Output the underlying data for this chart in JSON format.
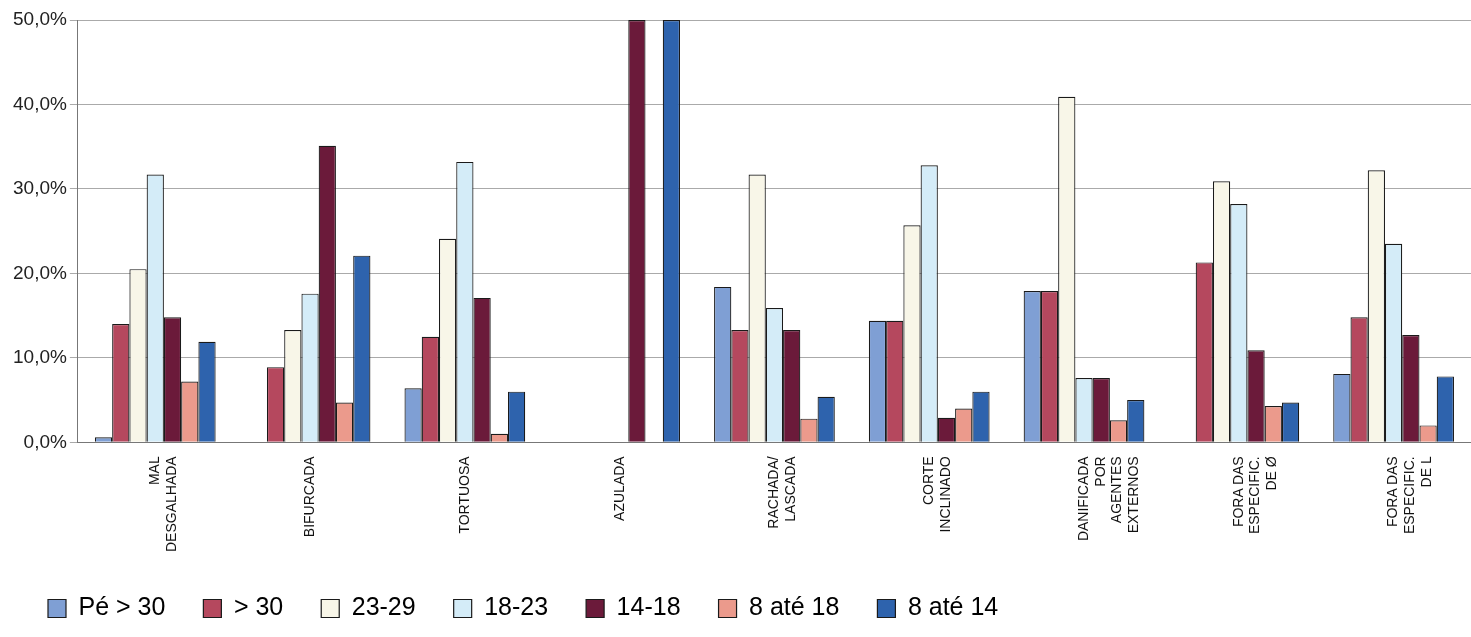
{
  "chart_data": {
    "type": "bar",
    "categories": [
      "MAL\nDESGALHADA",
      "BIFURCADA",
      "TORTUOSA",
      "AZULADA",
      "RACHADA/\nLASCADA",
      "CORTE\nINCLINADO",
      "DANIFICADA\nPOR\nAGENTES\nEXTERNOS",
      "FORA DAS\nESPECIFIC.\nDE Ø",
      "FORA DAS\nESPECIFIC.\nDE L"
    ],
    "series": [
      {
        "name": "Pé > 30",
        "color": "#7f9fd4",
        "values": [
          0.6,
          0,
          6.4,
          0,
          18.4,
          14.4,
          17.9,
          0,
          8.1
        ]
      },
      {
        "name": "> 30",
        "color": "#b5485e",
        "values": [
          14.0,
          8.9,
          12.5,
          0,
          13.3,
          14.4,
          17.9,
          21.3,
          14.8
        ]
      },
      {
        "name": "23-29",
        "color": "#f8f6e8",
        "values": [
          20.5,
          13.3,
          24.1,
          0,
          31.7,
          25.7,
          40.9,
          30.9,
          32.2
        ]
      },
      {
        "name": "18-23",
        "color": "#d4ecf8",
        "values": [
          31.7,
          17.6,
          33.2,
          0,
          15.9,
          32.8,
          7.6,
          28.2,
          23.5
        ]
      },
      {
        "name": "14-18",
        "color": "#6b1a3a",
        "values": [
          14.8,
          35.1,
          17.1,
          50.0,
          13.3,
          2.9,
          7.6,
          10.9,
          12.7
        ]
      },
      {
        "name": "8 até 18",
        "color": "#eb9a8c",
        "values": [
          7.2,
          4.7,
          1.0,
          0,
          2.8,
          4.0,
          2.6,
          4.3,
          2.0
        ]
      },
      {
        "name": "8 até 14",
        "color": "#2e63ad",
        "values": [
          11.9,
          22.1,
          6.0,
          50.0,
          5.4,
          6.0,
          5.0,
          4.7,
          7.8
        ]
      }
    ],
    "ylim": [
      0,
      50
    ],
    "yticks": [
      {
        "value": 0,
        "label": "0,0%"
      },
      {
        "value": 10,
        "label": "10,0%"
      },
      {
        "value": 20,
        "label": "20,0%"
      },
      {
        "value": 30,
        "label": "30,0%"
      },
      {
        "value": 40,
        "label": "40,0%"
      },
      {
        "value": 50,
        "label": "50,0%"
      }
    ],
    "grid": "y",
    "legend": "bottom left"
  }
}
